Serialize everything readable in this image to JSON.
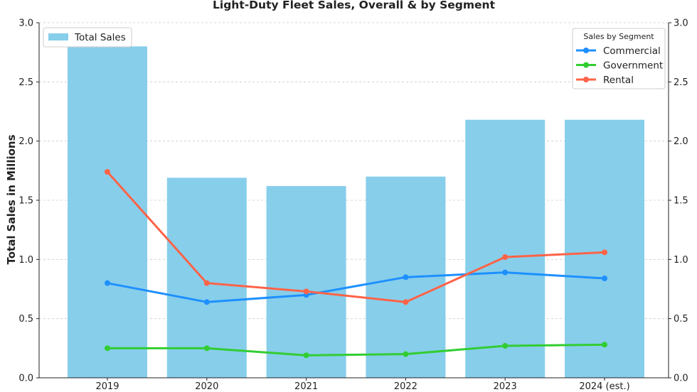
{
  "chart_data": {
    "type": "bar",
    "title": "Light-Duty Fleet Sales, Overall & by Segment",
    "xlabel": "",
    "ylabel": "Total Sales in Millions",
    "categories": [
      "2019",
      "2020",
      "2021",
      "2022",
      "2023",
      "2024 (est.)"
    ],
    "ylim": [
      0,
      3.0
    ],
    "yticks": [
      "0.0",
      "0.5",
      "1.0",
      "1.5",
      "2.0",
      "2.5",
      "3.0"
    ],
    "grid": true,
    "bar_series": {
      "name": "Total Sales",
      "color": "#87CEEB",
      "values": [
        2.8,
        1.69,
        1.62,
        1.7,
        2.18,
        2.18
      ]
    },
    "line_series_legend_title": "Sales by Segment",
    "series": [
      {
        "name": "Commercial",
        "color": "#1E90FF",
        "type": "line",
        "values": [
          0.8,
          0.64,
          0.7,
          0.85,
          0.89,
          0.84
        ]
      },
      {
        "name": "Government",
        "color": "#32CD32",
        "type": "line",
        "values": [
          0.25,
          0.25,
          0.19,
          0.2,
          0.27,
          0.28
        ]
      },
      {
        "name": "Rental",
        "color": "#FF6347",
        "type": "line",
        "values": [
          1.74,
          0.8,
          0.73,
          0.64,
          1.02,
          1.06
        ]
      }
    ],
    "legend_bar_placement": "top-left",
    "legend_lines_placement": "top-right",
    "secondary_axis": {
      "ylim": [
        0,
        3.0
      ],
      "yticks": [
        "0.0",
        "0.5",
        "1.0",
        "1.5",
        "2.0",
        "2.5",
        "3.0"
      ]
    }
  }
}
